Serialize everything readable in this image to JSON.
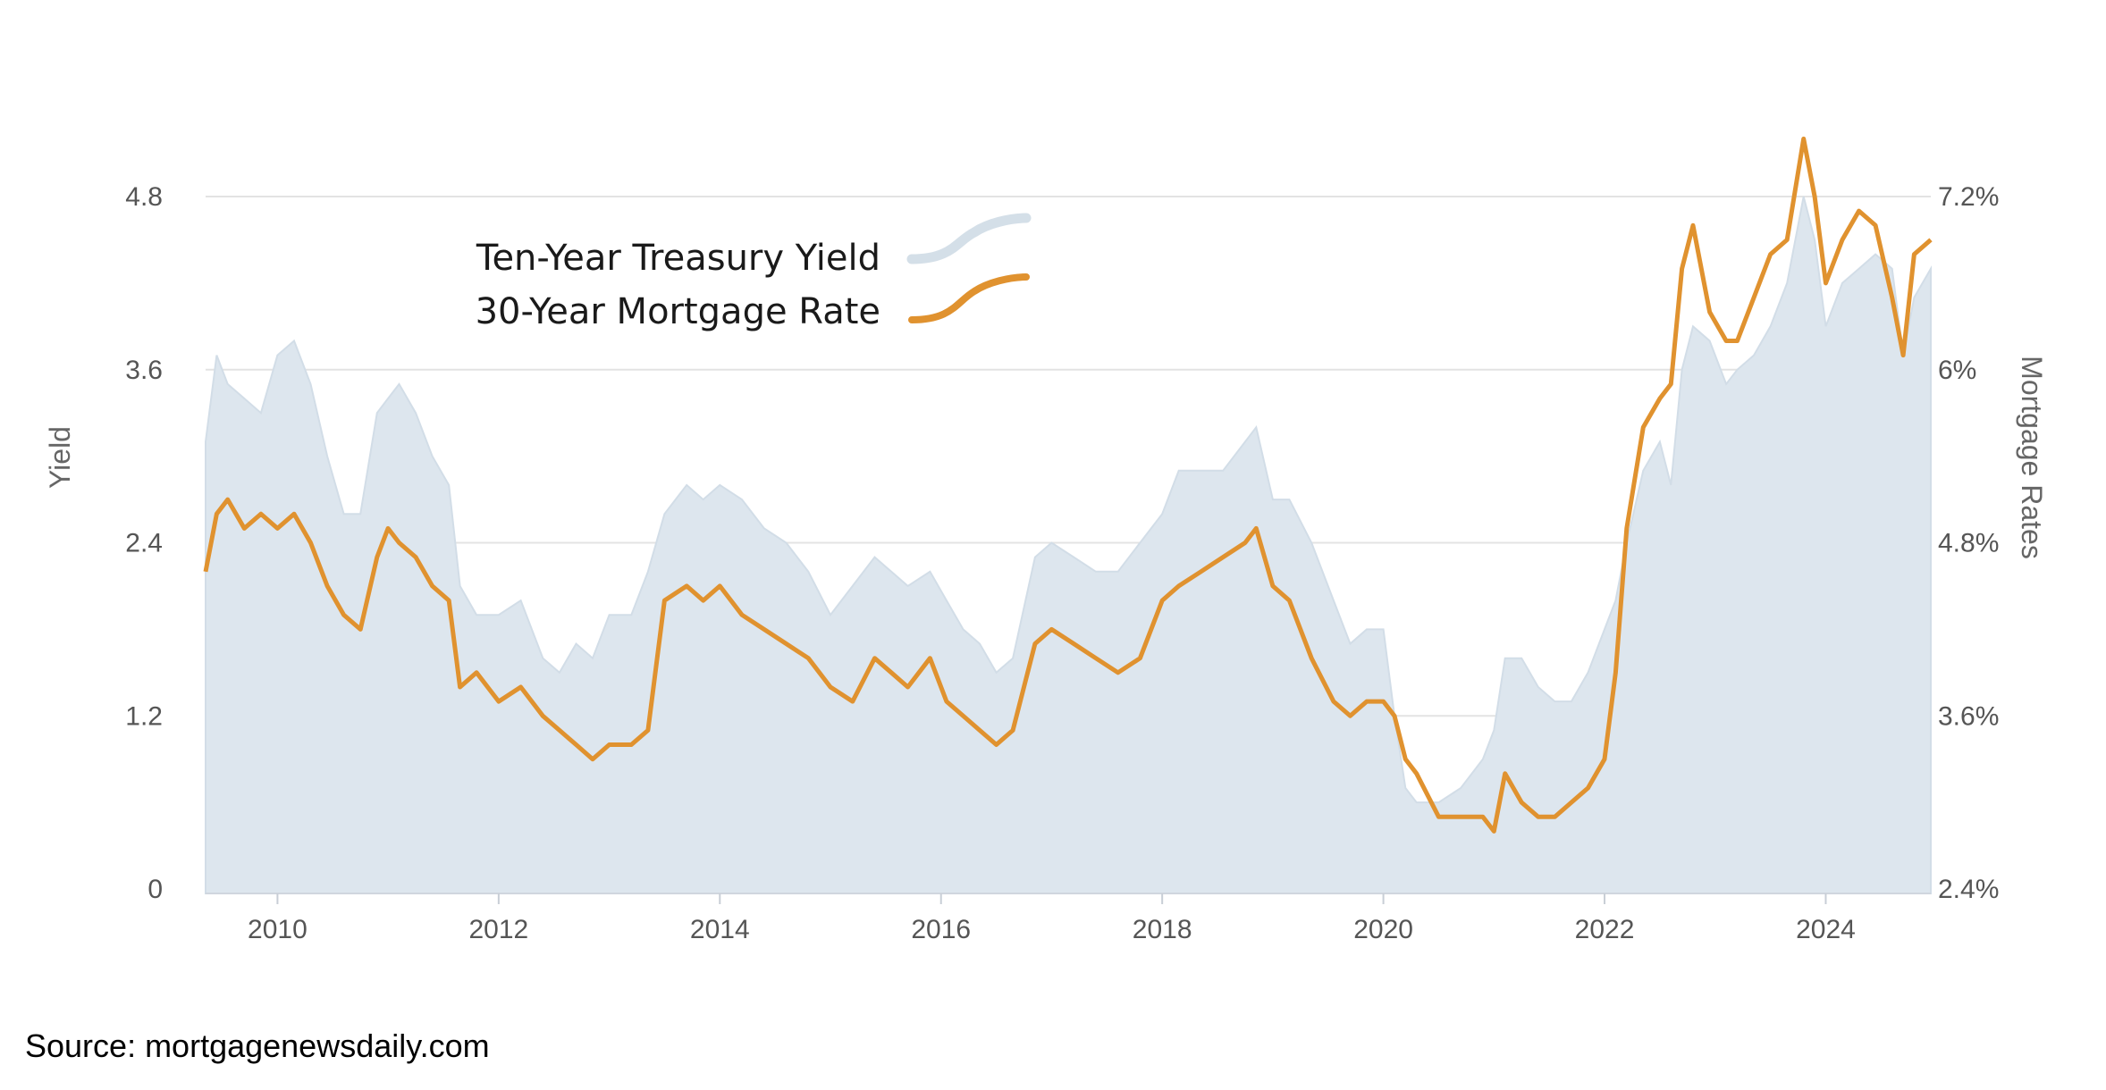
{
  "colors": {
    "treasury_area": "#dde6ee",
    "treasury_legend_line": "#d4dfe8",
    "mortgage_line": "#e0922f",
    "gridline": "#e3e3e3",
    "axis_text": "#555555",
    "background": "#ffffff"
  },
  "source_text": "Source: mortgagenewsdaily.com",
  "chart_data": {
    "type": "line",
    "grid": true,
    "legend_position": "top-left",
    "x_axis": {
      "ticks": [
        "2010",
        "2012",
        "2014",
        "2016",
        "2018",
        "2020",
        "2022",
        "2024"
      ],
      "range": [
        2009.35,
        2024.95
      ]
    },
    "y_left": {
      "label": "Yield",
      "ticks": [
        "0",
        "1.2",
        "2.4",
        "3.6",
        "4.8"
      ],
      "range": [
        0,
        4.8
      ]
    },
    "y_right": {
      "label": "Mortgage Rates",
      "ticks": [
        "2.4%",
        "3.6%",
        "4.8%",
        "6%",
        "7.2%"
      ],
      "range": [
        2.4,
        7.2
      ],
      "unit": "%"
    },
    "series": [
      {
        "name": "Ten-Year Treasury Yield",
        "axis": "left",
        "style": "area",
        "x": [
          2009.35,
          2009.45,
          2009.55,
          2009.7,
          2009.85,
          2010.0,
          2010.15,
          2010.3,
          2010.45,
          2010.6,
          2010.75,
          2010.9,
          2011.0,
          2011.1,
          2011.25,
          2011.4,
          2011.55,
          2011.65,
          2011.8,
          2012.0,
          2012.2,
          2012.4,
          2012.55,
          2012.7,
          2012.85,
          2013.0,
          2013.2,
          2013.35,
          2013.5,
          2013.7,
          2013.85,
          2014.0,
          2014.2,
          2014.4,
          2014.6,
          2014.8,
          2015.0,
          2015.2,
          2015.4,
          2015.55,
          2015.7,
          2015.9,
          2016.05,
          2016.2,
          2016.35,
          2016.5,
          2016.65,
          2016.85,
          2017.0,
          2017.2,
          2017.4,
          2017.6,
          2017.8,
          2018.0,
          2018.15,
          2018.35,
          2018.55,
          2018.75,
          2018.85,
          2019.0,
          2019.15,
          2019.35,
          2019.55,
          2019.7,
          2019.85,
          2020.0,
          2020.1,
          2020.2,
          2020.3,
          2020.5,
          2020.7,
          2020.9,
          2021.0,
          2021.1,
          2021.25,
          2021.4,
          2021.55,
          2021.7,
          2021.85,
          2022.0,
          2022.1,
          2022.2,
          2022.35,
          2022.5,
          2022.6,
          2022.7,
          2022.8,
          2022.95,
          2023.1,
          2023.2,
          2023.35,
          2023.5,
          2023.65,
          2023.8,
          2023.9,
          2024.0,
          2024.15,
          2024.3,
          2024.45,
          2024.6,
          2024.7,
          2024.8,
          2024.95
        ],
        "y": [
          3.1,
          3.7,
          3.5,
          3.4,
          3.3,
          3.7,
          3.8,
          3.5,
          3.0,
          2.6,
          2.6,
          3.3,
          3.4,
          3.5,
          3.3,
          3.0,
          2.8,
          2.1,
          1.9,
          1.9,
          2.0,
          1.6,
          1.5,
          1.7,
          1.6,
          1.9,
          1.9,
          2.2,
          2.6,
          2.8,
          2.7,
          2.8,
          2.7,
          2.5,
          2.4,
          2.2,
          1.9,
          2.1,
          2.3,
          2.2,
          2.1,
          2.2,
          2.0,
          1.8,
          1.7,
          1.5,
          1.6,
          2.3,
          2.4,
          2.3,
          2.2,
          2.2,
          2.4,
          2.6,
          2.9,
          2.9,
          2.9,
          3.1,
          3.2,
          2.7,
          2.7,
          2.4,
          2.0,
          1.7,
          1.8,
          1.8,
          1.2,
          0.7,
          0.6,
          0.6,
          0.7,
          0.9,
          1.1,
          1.6,
          1.6,
          1.4,
          1.3,
          1.3,
          1.5,
          1.8,
          2.0,
          2.4,
          2.9,
          3.1,
          2.8,
          3.6,
          3.9,
          3.8,
          3.5,
          3.6,
          3.7,
          3.9,
          4.2,
          4.8,
          4.5,
          3.9,
          4.2,
          4.3,
          4.4,
          4.3,
          3.7,
          4.1,
          4.3
        ]
      },
      {
        "name": "30-Year Mortgage Rate",
        "axis": "right",
        "style": "line",
        "x": [
          2009.35,
          2009.45,
          2009.55,
          2009.7,
          2009.85,
          2010.0,
          2010.15,
          2010.3,
          2010.45,
          2010.6,
          2010.75,
          2010.9,
          2011.0,
          2011.1,
          2011.25,
          2011.4,
          2011.55,
          2011.65,
          2011.8,
          2012.0,
          2012.2,
          2012.4,
          2012.55,
          2012.7,
          2012.85,
          2013.0,
          2013.2,
          2013.35,
          2013.5,
          2013.7,
          2013.85,
          2014.0,
          2014.2,
          2014.4,
          2014.6,
          2014.8,
          2015.0,
          2015.2,
          2015.4,
          2015.55,
          2015.7,
          2015.9,
          2016.05,
          2016.2,
          2016.35,
          2016.5,
          2016.65,
          2016.85,
          2017.0,
          2017.2,
          2017.4,
          2017.6,
          2017.8,
          2018.0,
          2018.15,
          2018.35,
          2018.55,
          2018.75,
          2018.85,
          2019.0,
          2019.15,
          2019.35,
          2019.55,
          2019.7,
          2019.85,
          2020.0,
          2020.1,
          2020.2,
          2020.3,
          2020.5,
          2020.7,
          2020.9,
          2021.0,
          2021.1,
          2021.25,
          2021.4,
          2021.55,
          2021.7,
          2021.85,
          2022.0,
          2022.1,
          2022.2,
          2022.35,
          2022.5,
          2022.6,
          2022.7,
          2022.8,
          2022.95,
          2023.1,
          2023.2,
          2023.35,
          2023.5,
          2023.65,
          2023.8,
          2023.9,
          2024.0,
          2024.15,
          2024.3,
          2024.45,
          2024.6,
          2024.7,
          2024.8,
          2024.95
        ],
        "y": [
          4.6,
          5.0,
          5.1,
          4.9,
          5.0,
          4.9,
          5.0,
          4.8,
          4.5,
          4.3,
          4.2,
          4.7,
          4.9,
          4.8,
          4.7,
          4.5,
          4.4,
          3.8,
          3.9,
          3.7,
          3.8,
          3.6,
          3.5,
          3.4,
          3.3,
          3.4,
          3.4,
          3.5,
          4.4,
          4.5,
          4.4,
          4.5,
          4.3,
          4.2,
          4.1,
          4.0,
          3.8,
          3.7,
          4.0,
          3.9,
          3.8,
          4.0,
          3.7,
          3.6,
          3.5,
          3.4,
          3.5,
          4.1,
          4.2,
          4.1,
          4.0,
          3.9,
          4.0,
          4.4,
          4.5,
          4.6,
          4.7,
          4.8,
          4.9,
          4.5,
          4.4,
          4.0,
          3.7,
          3.6,
          3.7,
          3.7,
          3.6,
          3.3,
          3.2,
          2.9,
          2.9,
          2.9,
          2.8,
          3.2,
          3.0,
          2.9,
          2.9,
          3.0,
          3.1,
          3.3,
          3.9,
          4.9,
          5.6,
          5.8,
          5.9,
          6.7,
          7.0,
          6.4,
          6.2,
          6.2,
          6.5,
          6.8,
          6.9,
          7.6,
          7.2,
          6.6,
          6.9,
          7.1,
          7.0,
          6.5,
          6.1,
          6.8,
          6.9
        ]
      }
    ],
    "legend": [
      "Ten-Year Treasury Yield",
      "30-Year Mortgage Rate"
    ]
  }
}
